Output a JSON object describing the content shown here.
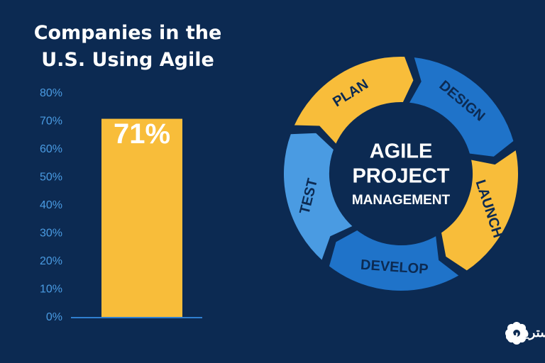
{
  "chart_data": {
    "type": "bar",
    "title": "Companies in the U.S. Using Agile",
    "categories": [
      null
    ],
    "values": [
      71
    ],
    "value_labels": [
      "71%"
    ],
    "color": "#f8bd3a",
    "ylim": [
      0,
      80
    ],
    "yticks": [
      {
        "value": 0,
        "label": "0%"
      },
      {
        "value": 10,
        "label": "10%"
      },
      {
        "value": 20,
        "label": "20%"
      },
      {
        "value": 30,
        "label": "30%"
      },
      {
        "value": 40,
        "label": "40%"
      },
      {
        "value": 50,
        "label": "50%"
      },
      {
        "value": 60,
        "label": "60%"
      },
      {
        "value": 70,
        "label": "70%"
      },
      {
        "value": 80,
        "label": "80%"
      }
    ]
  },
  "cycle": {
    "center": [
      "AGILE",
      "PROJECT",
      "MANAGEMENT"
    ],
    "stages": [
      "PLAN",
      "DESIGN",
      "LAUNCH",
      "DEVELOP",
      "TEST"
    ]
  },
  "logo": "مستریرین"
}
